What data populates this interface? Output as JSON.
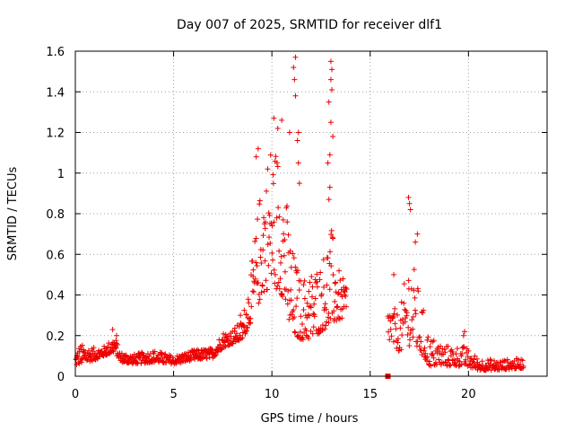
{
  "chart_data": {
    "type": "scatter",
    "title": "Day 007 of 2025, SRMTID for receiver dlf1",
    "xlabel": "GPS time / hours",
    "ylabel": "SRMTID / TECUs",
    "xlim": [
      0,
      24
    ],
    "ylim": [
      0,
      1.6
    ],
    "xticks": [
      0,
      5,
      10,
      15,
      20
    ],
    "yticks": [
      0,
      0.2,
      0.4,
      0.6,
      0.8,
      1,
      1.2,
      1.4,
      1.6
    ],
    "grid": true,
    "marker": "+",
    "series": [
      {
        "name": "SRMTID",
        "color": "#ee0000",
        "envelope": [
          {
            "x": 0.0,
            "base": 0.05,
            "spread": 0.06
          },
          {
            "x": 0.2,
            "base": 0.06,
            "spread": 0.1
          },
          {
            "x": 1.0,
            "base": 0.08,
            "spread": 0.06
          },
          {
            "x": 1.5,
            "base": 0.1,
            "spread": 0.05
          },
          {
            "x": 2.0,
            "base": 0.12,
            "spread": 0.08
          },
          {
            "x": 2.3,
            "base": 0.07,
            "spread": 0.05
          },
          {
            "x": 3.0,
            "base": 0.06,
            "spread": 0.05
          },
          {
            "x": 4.0,
            "base": 0.07,
            "spread": 0.06
          },
          {
            "x": 5.0,
            "base": 0.06,
            "spread": 0.04
          },
          {
            "x": 6.0,
            "base": 0.08,
            "spread": 0.05
          },
          {
            "x": 7.0,
            "base": 0.09,
            "spread": 0.05
          },
          {
            "x": 7.5,
            "base": 0.14,
            "spread": 0.08
          },
          {
            "x": 8.0,
            "base": 0.16,
            "spread": 0.07
          },
          {
            "x": 8.5,
            "base": 0.18,
            "spread": 0.1
          },
          {
            "x": 9.0,
            "base": 0.28,
            "spread": 0.3
          },
          {
            "x": 9.5,
            "base": 0.4,
            "spread": 0.6
          },
          {
            "x": 10.0,
            "base": 0.45,
            "spread": 0.75
          },
          {
            "x": 10.5,
            "base": 0.4,
            "spread": 0.7
          },
          {
            "x": 11.0,
            "base": 0.2,
            "spread": 0.45
          },
          {
            "x": 11.5,
            "base": 0.18,
            "spread": 0.3
          },
          {
            "x": 12.0,
            "base": 0.18,
            "spread": 0.35
          },
          {
            "x": 12.5,
            "base": 0.22,
            "spread": 0.35
          },
          {
            "x": 13.0,
            "base": 0.25,
            "spread": 0.5
          },
          {
            "x": 13.5,
            "base": 0.28,
            "spread": 0.2
          },
          {
            "x": 13.8,
            "base": 0.28,
            "spread": 0.2
          }
        ],
        "envelope2": [
          {
            "x": 15.9,
            "base": 0.18,
            "spread": 0.2
          },
          {
            "x": 16.5,
            "base": 0.12,
            "spread": 0.18
          },
          {
            "x": 17.0,
            "base": 0.15,
            "spread": 0.5
          },
          {
            "x": 17.5,
            "base": 0.12,
            "spread": 0.3
          },
          {
            "x": 18.0,
            "base": 0.05,
            "spread": 0.15
          },
          {
            "x": 19.0,
            "base": 0.05,
            "spread": 0.1
          },
          {
            "x": 19.8,
            "base": 0.05,
            "spread": 0.1
          },
          {
            "x": 20.5,
            "base": 0.03,
            "spread": 0.06
          },
          {
            "x": 21.5,
            "base": 0.03,
            "spread": 0.05
          },
          {
            "x": 22.8,
            "base": 0.04,
            "spread": 0.05
          }
        ],
        "outliers": [
          {
            "x": 11.2,
            "y": 1.57
          },
          {
            "x": 11.1,
            "y": 1.52
          },
          {
            "x": 11.15,
            "y": 1.46
          },
          {
            "x": 11.2,
            "y": 1.38
          },
          {
            "x": 11.35,
            "y": 1.2
          },
          {
            "x": 11.3,
            "y": 1.16
          },
          {
            "x": 11.35,
            "y": 1.05
          },
          {
            "x": 11.4,
            "y": 0.95
          },
          {
            "x": 13.0,
            "y": 1.55
          },
          {
            "x": 13.05,
            "y": 1.51
          },
          {
            "x": 13.0,
            "y": 1.46
          },
          {
            "x": 13.05,
            "y": 1.41
          },
          {
            "x": 12.9,
            "y": 1.35
          },
          {
            "x": 13.0,
            "y": 1.25
          },
          {
            "x": 13.1,
            "y": 1.18
          },
          {
            "x": 12.95,
            "y": 1.09
          },
          {
            "x": 12.85,
            "y": 1.05
          },
          {
            "x": 12.95,
            "y": 0.93
          },
          {
            "x": 12.9,
            "y": 0.87
          },
          {
            "x": 10.1,
            "y": 1.27
          },
          {
            "x": 10.5,
            "y": 1.26
          },
          {
            "x": 10.9,
            "y": 1.2
          },
          {
            "x": 10.3,
            "y": 1.22
          },
          {
            "x": 9.3,
            "y": 1.12
          },
          {
            "x": 9.2,
            "y": 1.08
          },
          {
            "x": 16.95,
            "y": 0.88
          },
          {
            "x": 17.0,
            "y": 0.85
          },
          {
            "x": 17.05,
            "y": 0.82
          },
          {
            "x": 17.4,
            "y": 0.7
          },
          {
            "x": 17.3,
            "y": 0.66
          },
          {
            "x": 16.2,
            "y": 0.5
          },
          {
            "x": 19.8,
            "y": 0.22
          },
          {
            "x": 19.75,
            "y": 0.2
          },
          {
            "x": 1.9,
            "y": 0.23
          },
          {
            "x": 2.1,
            "y": 0.2
          },
          {
            "x": 8.4,
            "y": 0.3
          }
        ],
        "square_marker": {
          "x": 15.9,
          "y": 0.0
        }
      }
    ]
  }
}
